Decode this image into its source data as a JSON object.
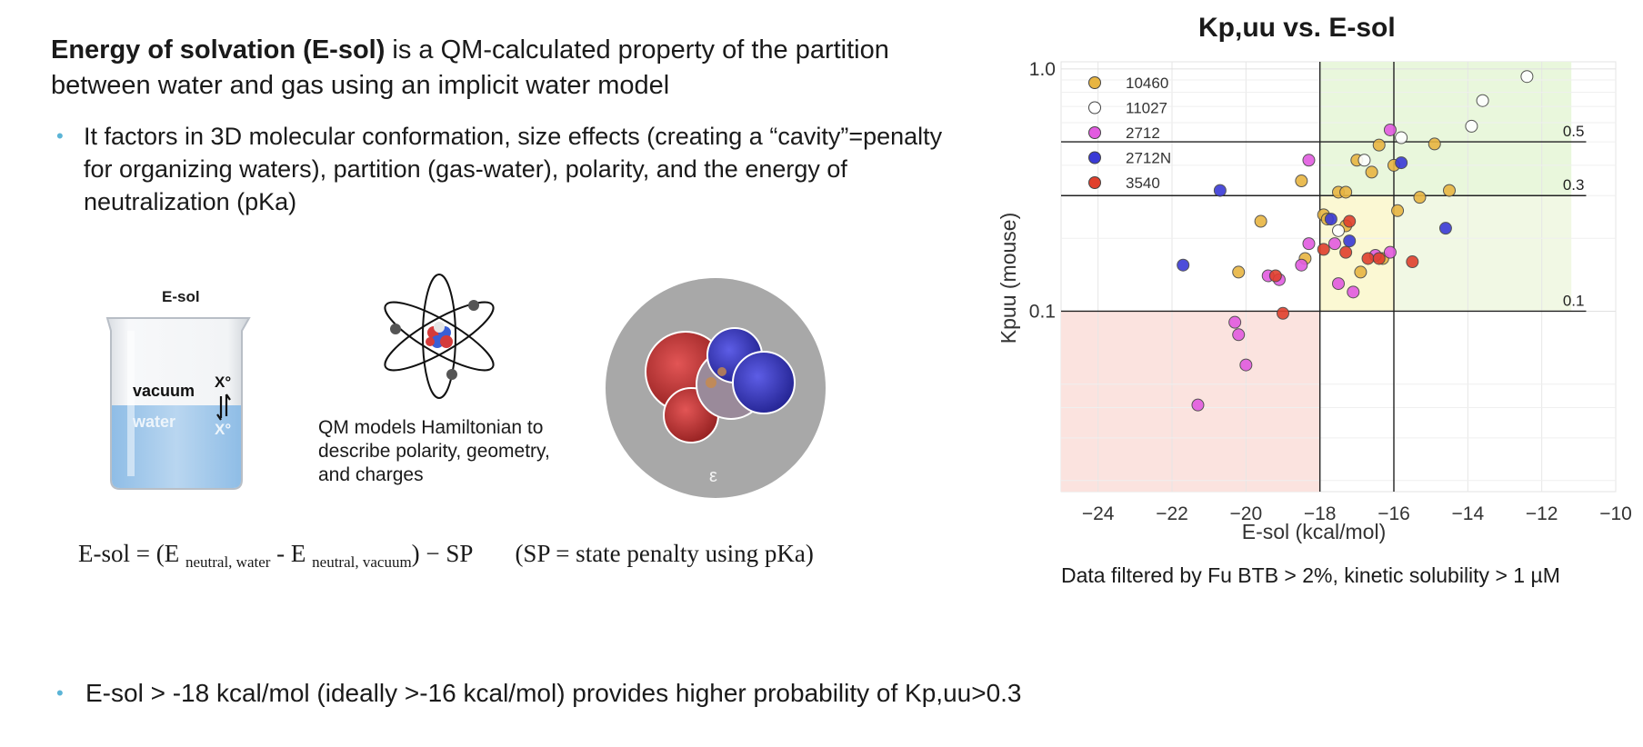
{
  "intro": {
    "bold": "Energy of solvation  (E-sol)",
    "rest": " is a QM-calculated property of the partition between water and gas using an implicit water model"
  },
  "bullet1": "It factors in 3D molecular conformation, size effects (creating a “cavity”=penalty for organizing waters), partition (gas-water), polarity, and the energy of neutralization (pKa)",
  "beaker": {
    "caption": "E-sol",
    "vacuum": "vacuum",
    "water": "water",
    "x_top": "X°",
    "x_bottom": "X°"
  },
  "qm_caption": "QM models Hamiltonian to describe polarity, geometry, and charges",
  "epsilon": "ε",
  "equation": {
    "lhs": "E-sol = (E ",
    "sub1": "neutral, water",
    "mid": " - E ",
    "sub2": "neutral, vacuum",
    "end": ") −  SP",
    "note": "(SP = state penalty using pKa)"
  },
  "bottom_bullet": "E-sol > -18 kcal/mol (ideally >-16 kcal/mol) provides higher probability of Kp,uu>0.3",
  "chart_note": "Data filtered by Fu BTB > 2%, kinetic solubility > 1 µM",
  "chart_data": {
    "type": "scatter",
    "title": "Kp,uu vs. E-sol",
    "xlabel": "E-sol (kcal/mol)",
    "ylabel": "Kpuu (mouse)",
    "xlim": [
      -25,
      -10
    ],
    "ylim": [
      0.018,
      1.07
    ],
    "yscale": "log",
    "xticks": [
      -24,
      -22,
      -20,
      -18,
      -16,
      -14,
      -12,
      -10
    ],
    "xtick_labels": [
      "−24",
      "−22",
      "−20",
      "−18",
      "−16",
      "−14",
      "−12",
      "−10"
    ],
    "yticks": [
      1.0,
      0.1
    ],
    "ytick_labels": [
      "1.0",
      "0.1"
    ],
    "vlines": [
      -18,
      -16
    ],
    "hlines": [
      {
        "y": 0.5,
        "label": "0.5"
      },
      {
        "y": 0.3,
        "label": "0.3"
      },
      {
        "y": 0.1,
        "label": "0.1"
      }
    ],
    "regions": [
      {
        "x0": -25,
        "x1": -18,
        "y0": 0.018,
        "y1": 0.1,
        "color": "#fbe3df"
      },
      {
        "x0": -18,
        "x1": -16,
        "y0": 0.1,
        "y1": 0.3,
        "color": "#fbf8d3"
      },
      {
        "x0": -18,
        "x1": -11.2,
        "y0": 0.3,
        "y1": 1.07,
        "color": "#e9f7dc"
      },
      {
        "x0": -16,
        "x1": -11.2,
        "y0": 0.1,
        "y1": 0.3,
        "color": "#f1f8e4"
      }
    ],
    "legend_position": "top-left",
    "series": [
      {
        "name": "10460",
        "color": "#e8b542",
        "points": [
          [
            -17.9,
            0.25
          ],
          [
            -17.5,
            0.31
          ],
          [
            -17.0,
            0.42
          ],
          [
            -16.6,
            0.375
          ],
          [
            -16.4,
            0.485
          ],
          [
            -16.0,
            0.4
          ],
          [
            -15.9,
            0.26
          ],
          [
            -15.3,
            0.295
          ],
          [
            -14.9,
            0.49
          ],
          [
            -14.5,
            0.315
          ],
          [
            -18.5,
            0.345
          ],
          [
            -17.3,
            0.31
          ],
          [
            -17.8,
            0.24
          ],
          [
            -19.6,
            0.235
          ],
          [
            -20.2,
            0.145
          ],
          [
            -18.4,
            0.165
          ],
          [
            -17.3,
            0.225
          ],
          [
            -16.9,
            0.145
          ],
          [
            -16.3,
            0.165
          ]
        ]
      },
      {
        "name": "11027",
        "color": "#ffffff",
        "points": [
          [
            -12.4,
            0.93
          ],
          [
            -13.6,
            0.74
          ],
          [
            -13.9,
            0.58
          ],
          [
            -15.8,
            0.52
          ],
          [
            -16.8,
            0.42
          ],
          [
            -17.5,
            0.215
          ]
        ]
      },
      {
        "name": "2712",
        "color": "#e25be0",
        "points": [
          [
            -18.3,
            0.42
          ],
          [
            -16.1,
            0.56
          ],
          [
            -18.3,
            0.19
          ],
          [
            -17.6,
            0.19
          ],
          [
            -18.5,
            0.155
          ],
          [
            -19.4,
            0.14
          ],
          [
            -19.1,
            0.135
          ],
          [
            -17.5,
            0.13
          ],
          [
            -17.1,
            0.12
          ],
          [
            -16.5,
            0.17
          ],
          [
            -16.1,
            0.175
          ],
          [
            -20.3,
            0.09
          ],
          [
            -20.2,
            0.08
          ],
          [
            -20.0,
            0.06
          ],
          [
            -21.3,
            0.041
          ]
        ]
      },
      {
        "name": "2712N",
        "color": "#3a3ad6",
        "points": [
          [
            -20.7,
            0.315
          ],
          [
            -21.7,
            0.155
          ],
          [
            -17.2,
            0.195
          ],
          [
            -17.7,
            0.24
          ],
          [
            -15.8,
            0.41
          ],
          [
            -14.6,
            0.22
          ]
        ]
      },
      {
        "name": "3540",
        "color": "#e0402d",
        "points": [
          [
            -19.2,
            0.14
          ],
          [
            -19.0,
            0.098
          ],
          [
            -17.9,
            0.18
          ],
          [
            -17.3,
            0.175
          ],
          [
            -17.2,
            0.235
          ],
          [
            -16.7,
            0.165
          ],
          [
            -16.4,
            0.165
          ],
          [
            -15.5,
            0.16
          ]
        ]
      }
    ]
  }
}
